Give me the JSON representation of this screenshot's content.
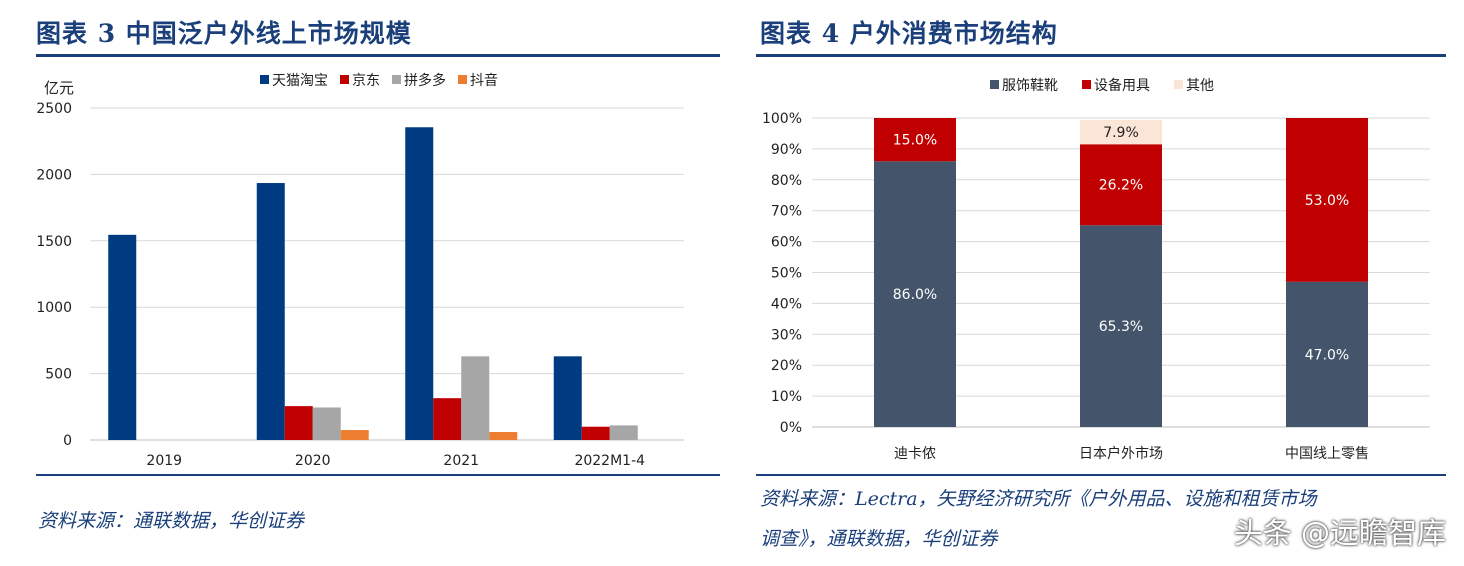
{
  "left": {
    "title": "图表 3   中国泛户外线上市场规模",
    "source": "资料来源：通联数据，华创证券"
  },
  "right": {
    "title": "图表 4   户外消费市场结构",
    "source_line1": "资料来源：Lectra，矢野经济研究所《户外用品、设施和租赁市场",
    "source_line2": "调查》，通联数据，华创证券"
  },
  "watermark": "头条 @远瞻智库",
  "chart_data": [
    {
      "type": "bar",
      "title": "中国泛户外线上市场规模",
      "ylabel": "亿元",
      "ylim": [
        0,
        2500
      ],
      "yticks": [
        0,
        500,
        1000,
        1500,
        2000,
        2500
      ],
      "categories": [
        "2019",
        "2020",
        "2021",
        "2022M1-4"
      ],
      "series": [
        {
          "name": "天猫淘宝",
          "color": "#003a80",
          "values": [
            1545,
            1935,
            2355,
            630
          ]
        },
        {
          "name": "京东",
          "color": "#c00000",
          "values": [
            0,
            255,
            315,
            100
          ]
        },
        {
          "name": "拼多多",
          "color": "#a6a6a6",
          "values": [
            0,
            245,
            630,
            110
          ]
        },
        {
          "name": "抖音",
          "color": "#ed7d31",
          "values": [
            0,
            75,
            60,
            0
          ]
        }
      ],
      "legend": "top",
      "grid": true
    },
    {
      "type": "bar",
      "stacked": true,
      "title": "户外消费市场结构",
      "ylim": [
        0,
        100
      ],
      "yticks": [
        "0%",
        "10%",
        "20%",
        "30%",
        "40%",
        "50%",
        "60%",
        "70%",
        "80%",
        "90%",
        "100%"
      ],
      "categories": [
        "迪卡侬",
        "日本户外市场",
        "中国线上零售"
      ],
      "series": [
        {
          "name": "服饰鞋靴",
          "color": "#44546a",
          "values": [
            86.0,
            65.3,
            47.0
          ],
          "labels": [
            "86.0%",
            "65.3%",
            "47.0%"
          ]
        },
        {
          "name": "设备用具",
          "color": "#c00000",
          "values": [
            15.0,
            26.2,
            53.0
          ],
          "labels": [
            "15.0%",
            "26.2%",
            "53.0%"
          ]
        },
        {
          "name": "其他",
          "color": "#fbe5d6",
          "values": [
            0,
            7.9,
            0
          ],
          "labels": [
            "",
            "7.9%",
            ""
          ]
        }
      ],
      "legend": "top",
      "grid": true
    }
  ]
}
